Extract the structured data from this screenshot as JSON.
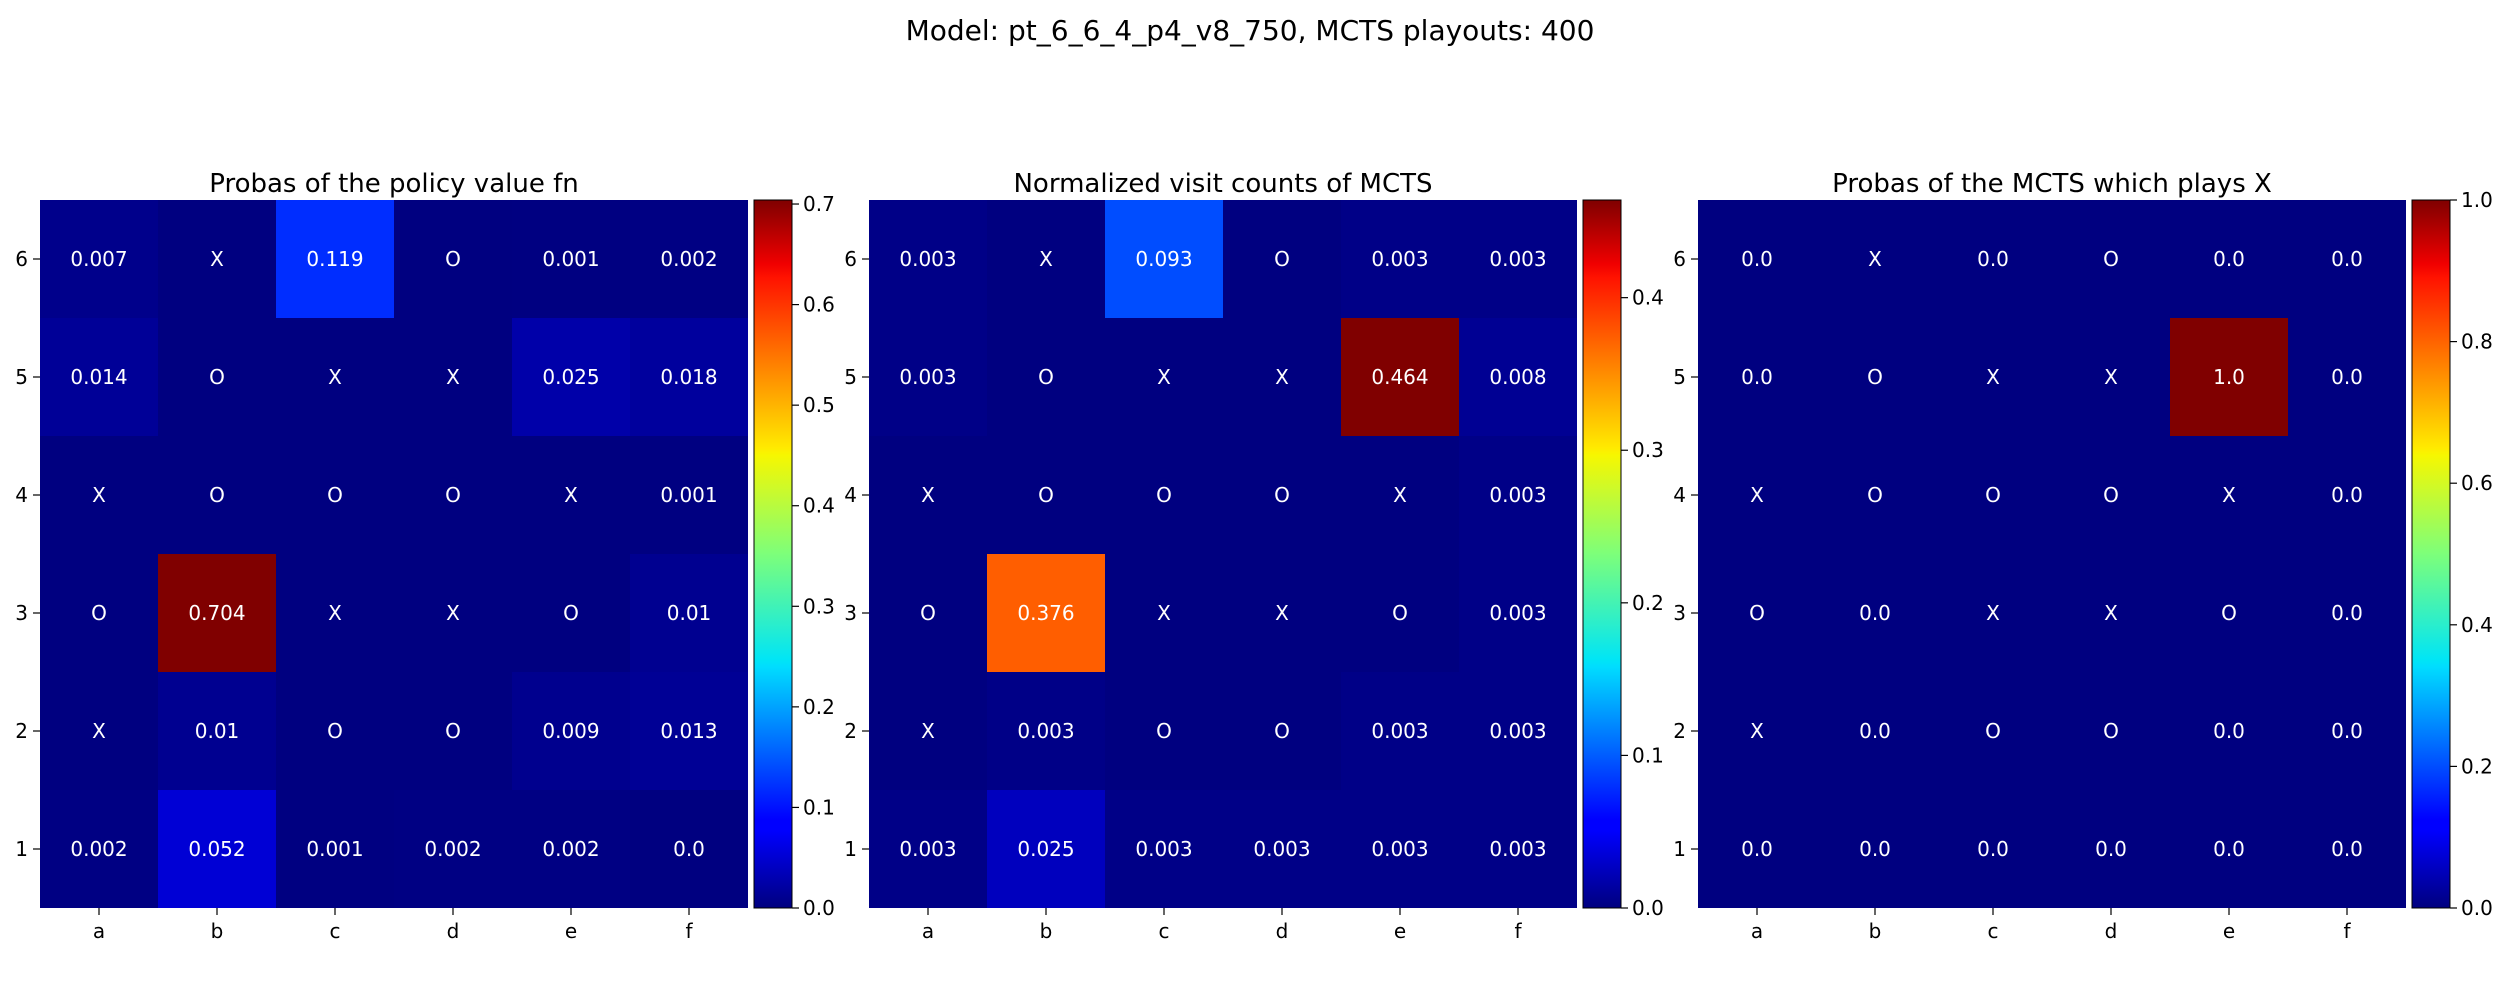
{
  "figure": {
    "title": "Model: pt_6_6_4_p4_v8_750, MCTS playouts: 400"
  },
  "chart_data": [
    {
      "type": "heatmap",
      "title": "Probas of the policy value fn",
      "x_labels": [
        "a",
        "b",
        "c",
        "d",
        "e",
        "f"
      ],
      "y_labels": [
        "6",
        "5",
        "4",
        "3",
        "2",
        "1"
      ],
      "values": [
        [
          0.007,
          null,
          0.119,
          null,
          0.001,
          0.002
        ],
        [
          0.014,
          null,
          null,
          null,
          0.025,
          0.018
        ],
        [
          null,
          null,
          null,
          null,
          null,
          0.001
        ],
        [
          null,
          0.704,
          null,
          null,
          null,
          0.01
        ],
        [
          null,
          0.01,
          null,
          null,
          0.009,
          0.013
        ],
        [
          0.002,
          0.052,
          0.001,
          0.002,
          0.002,
          0.0
        ]
      ],
      "cell_text": [
        [
          "0.007",
          "X",
          "0.119",
          "O",
          "0.001",
          "0.002"
        ],
        [
          "0.014",
          "O",
          "X",
          "X",
          "0.025",
          "0.018"
        ],
        [
          "X",
          "O",
          "O",
          "O",
          "X",
          "0.001"
        ],
        [
          "O",
          "0.704",
          "X",
          "X",
          "O",
          "0.01"
        ],
        [
          "X",
          "0.01",
          "O",
          "O",
          "0.009",
          "0.013"
        ],
        [
          "0.002",
          "0.052",
          "0.001",
          "0.002",
          "0.002",
          "0.0"
        ]
      ],
      "colormap": "jet",
      "vmin": 0.0,
      "vmax": 0.704,
      "colorbar_ticks": [
        "0.0",
        "0.1",
        "0.2",
        "0.3",
        "0.4",
        "0.5",
        "0.6",
        "0.7"
      ]
    },
    {
      "type": "heatmap",
      "title": "Normalized visit counts of MCTS",
      "x_labels": [
        "a",
        "b",
        "c",
        "d",
        "e",
        "f"
      ],
      "y_labels": [
        "6",
        "5",
        "4",
        "3",
        "2",
        "1"
      ],
      "values": [
        [
          0.003,
          null,
          0.093,
          null,
          0.003,
          0.003
        ],
        [
          0.003,
          null,
          null,
          null,
          0.464,
          0.008
        ],
        [
          null,
          null,
          null,
          null,
          null,
          0.003
        ],
        [
          null,
          0.376,
          null,
          null,
          null,
          0.003
        ],
        [
          null,
          0.003,
          null,
          null,
          0.003,
          0.003
        ],
        [
          0.003,
          0.025,
          0.003,
          0.003,
          0.003,
          0.003
        ]
      ],
      "cell_text": [
        [
          "0.003",
          "X",
          "0.093",
          "O",
          "0.003",
          "0.003"
        ],
        [
          "0.003",
          "O",
          "X",
          "X",
          "0.464",
          "0.008"
        ],
        [
          "X",
          "O",
          "O",
          "O",
          "X",
          "0.003"
        ],
        [
          "O",
          "0.376",
          "X",
          "X",
          "O",
          "0.003"
        ],
        [
          "X",
          "0.003",
          "O",
          "O",
          "0.003",
          "0.003"
        ],
        [
          "0.003",
          "0.025",
          "0.003",
          "0.003",
          "0.003",
          "0.003"
        ]
      ],
      "colormap": "jet",
      "vmin": 0.0,
      "vmax": 0.464,
      "colorbar_ticks": [
        "0.0",
        "0.1",
        "0.2",
        "0.3",
        "0.4"
      ]
    },
    {
      "type": "heatmap",
      "title": "Probas of the MCTS which plays X",
      "x_labels": [
        "a",
        "b",
        "c",
        "d",
        "e",
        "f"
      ],
      "y_labels": [
        "6",
        "5",
        "4",
        "3",
        "2",
        "1"
      ],
      "values": [
        [
          0.0,
          null,
          0.0,
          null,
          0.0,
          0.0
        ],
        [
          0.0,
          null,
          null,
          null,
          1.0,
          0.0
        ],
        [
          null,
          null,
          null,
          null,
          null,
          0.0
        ],
        [
          null,
          0.0,
          null,
          null,
          null,
          0.0
        ],
        [
          null,
          0.0,
          null,
          null,
          0.0,
          0.0
        ],
        [
          0.0,
          0.0,
          0.0,
          0.0,
          0.0,
          0.0
        ]
      ],
      "cell_text": [
        [
          "0.0",
          "X",
          "0.0",
          "O",
          "0.0",
          "0.0"
        ],
        [
          "0.0",
          "O",
          "X",
          "X",
          "1.0",
          "0.0"
        ],
        [
          "X",
          "O",
          "O",
          "O",
          "X",
          "0.0"
        ],
        [
          "O",
          "0.0",
          "X",
          "X",
          "O",
          "0.0"
        ],
        [
          "X",
          "0.0",
          "O",
          "O",
          "0.0",
          "0.0"
        ],
        [
          "0.0",
          "0.0",
          "0.0",
          "0.0",
          "0.0",
          "0.0"
        ]
      ],
      "colormap": "jet",
      "vmin": 0.0,
      "vmax": 1.0,
      "colorbar_ticks": [
        "0.0",
        "0.2",
        "0.4",
        "0.6",
        "0.8",
        "1.0"
      ]
    }
  ]
}
